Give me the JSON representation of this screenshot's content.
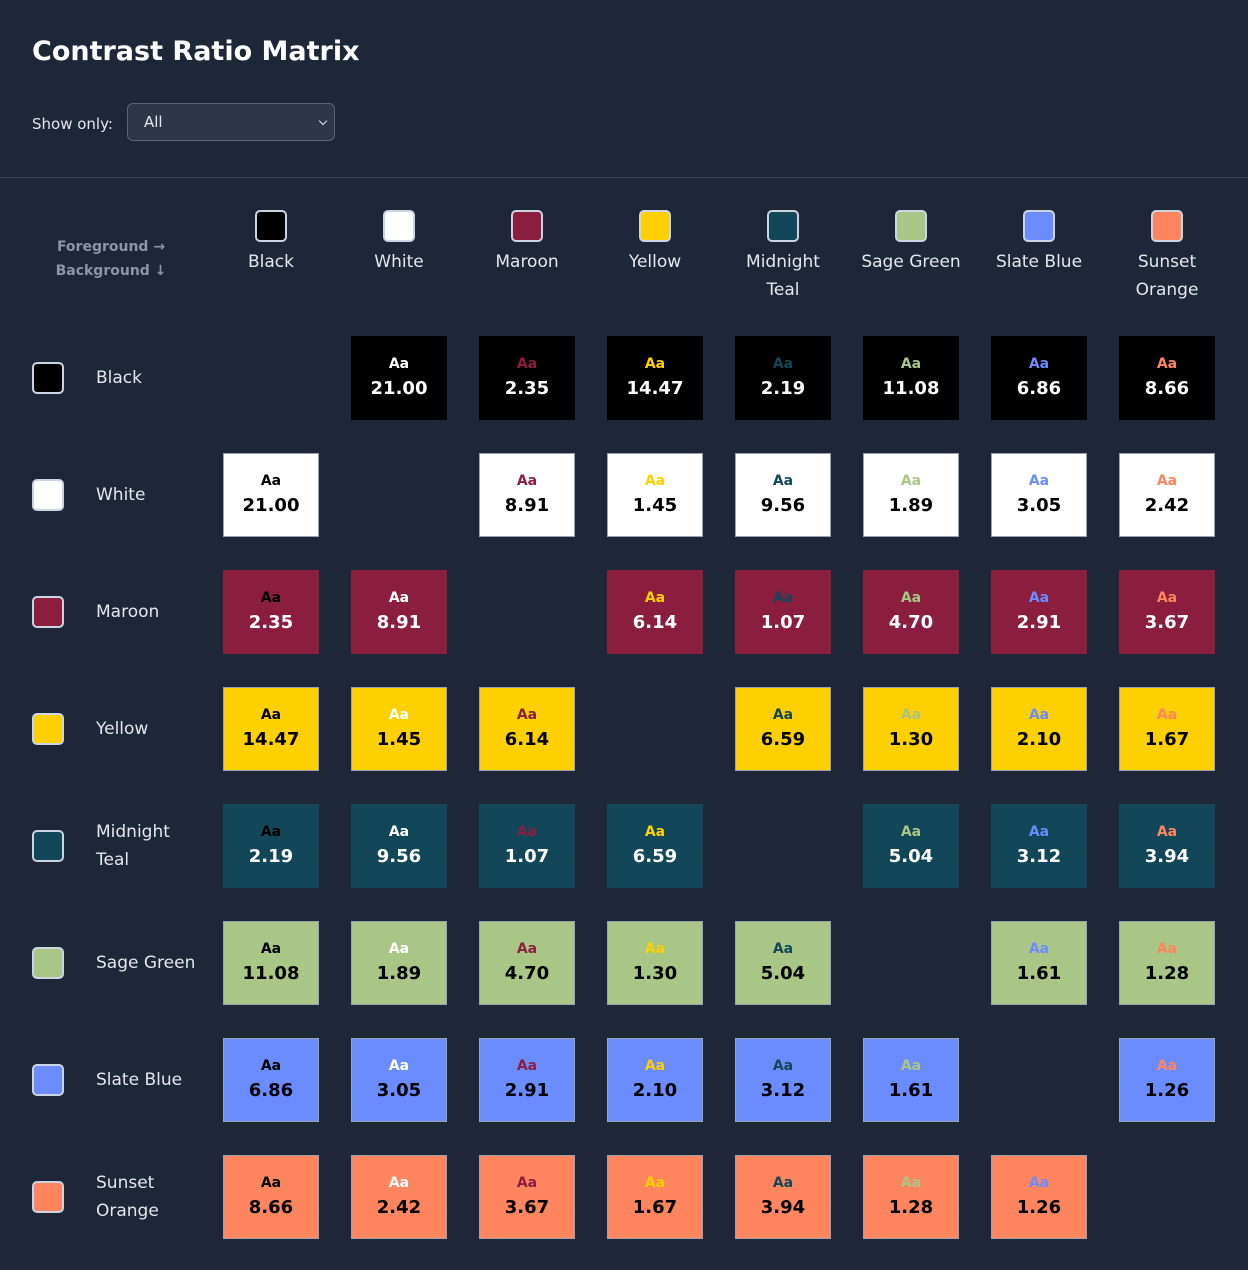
{
  "header": {
    "title": "Contrast Ratio Matrix"
  },
  "filter": {
    "label": "Show only:",
    "value": "All"
  },
  "matrix": {
    "corner": [
      "Foreground →",
      "Background ↓"
    ],
    "sample": "Aa",
    "colors": [
      {
        "name": "Black",
        "hex": "#000000"
      },
      {
        "name": "White",
        "hex": "#ffffff"
      },
      {
        "name": "Maroon",
        "hex": "#8b1e3f"
      },
      {
        "name": "Yellow",
        "hex": "#ffd000"
      },
      {
        "name": "Midnight Teal",
        "hex": "#12475a"
      },
      {
        "name": "Sage Green",
        "hex": "#a9c687"
      },
      {
        "name": "Slate Blue",
        "hex": "#6b8cff"
      },
      {
        "name": "Sunset Orange",
        "hex": "#ff855f"
      }
    ],
    "rows": [
      [
        null,
        "21.00",
        "2.35",
        "14.47",
        "2.19",
        "11.08",
        "6.86",
        "8.66"
      ],
      [
        "21.00",
        null,
        "8.91",
        "1.45",
        "9.56",
        "1.89",
        "3.05",
        "2.42"
      ],
      [
        "2.35",
        "8.91",
        null,
        "6.14",
        "1.07",
        "4.70",
        "2.91",
        "3.67"
      ],
      [
        "14.47",
        "1.45",
        "6.14",
        null,
        "6.59",
        "1.30",
        "2.10",
        "1.67"
      ],
      [
        "2.19",
        "9.56",
        "1.07",
        "6.59",
        null,
        "5.04",
        "3.12",
        "3.94"
      ],
      [
        "11.08",
        "1.89",
        "4.70",
        "1.30",
        "5.04",
        null,
        "1.61",
        "1.28"
      ],
      [
        "6.86",
        "3.05",
        "2.91",
        "2.10",
        "3.12",
        "1.61",
        null,
        "1.26"
      ],
      [
        "8.66",
        "2.42",
        "3.67",
        "1.67",
        "3.94",
        "1.28",
        "1.26",
        null
      ]
    ]
  }
}
